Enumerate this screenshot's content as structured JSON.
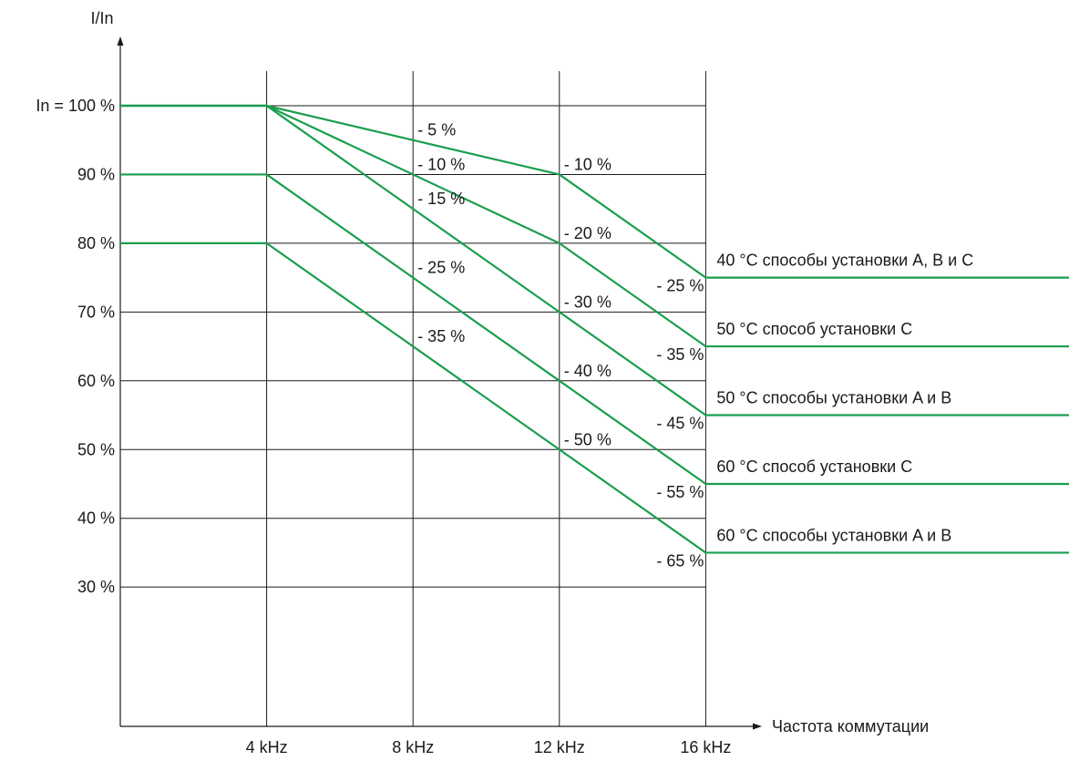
{
  "chart_data": {
    "type": "line",
    "xlabel": "Частота коммутации",
    "ylabel": "I/In",
    "x_ticks": [
      {
        "value": 4,
        "label": "4 kHz"
      },
      {
        "value": 8,
        "label": "8 kHz"
      },
      {
        "value": 12,
        "label": "12 kHz"
      },
      {
        "value": 16,
        "label": "16 kHz"
      }
    ],
    "y_ticks": [
      {
        "value": 100,
        "label": "In = 100 %"
      },
      {
        "value": 90,
        "label": "90 %"
      },
      {
        "value": 80,
        "label": "80 %"
      },
      {
        "value": 70,
        "label": "70 %"
      },
      {
        "value": 60,
        "label": "60 %"
      },
      {
        "value": 50,
        "label": "50 %"
      },
      {
        "value": 40,
        "label": "40 %"
      },
      {
        "value": 30,
        "label": "30 %"
      }
    ],
    "xlim": [
      0,
      16
    ],
    "ylim": [
      8,
      100
    ],
    "grid": true,
    "line_color": "#1a9e4f",
    "series": [
      {
        "name": "40 °C способы установки A, B и C",
        "x": [
          0,
          4,
          12,
          16
        ],
        "y": [
          100,
          100,
          90,
          75
        ],
        "labels": [
          {
            "x": 8,
            "text": "- 5 %"
          },
          {
            "x": 12,
            "text": "- 10 %"
          },
          {
            "x": 16,
            "text": "- 25 %"
          }
        ]
      },
      {
        "name": "50 °C способ установки C",
        "x": [
          0,
          4,
          12,
          16
        ],
        "y": [
          100,
          100,
          80,
          65
        ],
        "labels": [
          {
            "x": 8,
            "text": "- 10 %"
          },
          {
            "x": 12,
            "text": "- 20 %"
          },
          {
            "x": 16,
            "text": "- 35 %"
          }
        ]
      },
      {
        "name": "50 °C способы установки A и B",
        "x": [
          0,
          4,
          12,
          16
        ],
        "y": [
          100,
          100,
          70,
          55
        ],
        "labels": [
          {
            "x": 8,
            "text": "- 15 %"
          },
          {
            "x": 12,
            "text": "- 30 %"
          },
          {
            "x": 16,
            "text": "- 45 %"
          }
        ]
      },
      {
        "name": "60 °C способ установки C",
        "x": [
          0,
          4,
          12,
          16
        ],
        "y": [
          90,
          90,
          60,
          45
        ],
        "labels": [
          {
            "x": 8,
            "text": "- 25 %"
          },
          {
            "x": 12,
            "text": "- 40 %"
          },
          {
            "x": 16,
            "text": "- 55 %"
          }
        ]
      },
      {
        "name": "60 °C способы установки A и B",
        "x": [
          0,
          4,
          12,
          16
        ],
        "y": [
          80,
          80,
          50,
          35
        ],
        "labels": [
          {
            "x": 8,
            "text": "- 35 %"
          },
          {
            "x": 12,
            "text": "- 50 %"
          },
          {
            "x": 16,
            "text": "- 65 %"
          }
        ]
      }
    ]
  }
}
